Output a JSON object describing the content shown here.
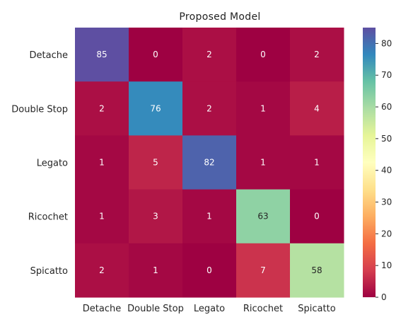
{
  "chart_data": {
    "type": "heatmap",
    "title": "Proposed Model",
    "xlabel": "",
    "ylabel": "",
    "x_categories": [
      "Detache",
      "Double Stop",
      "Legato",
      "Ricochet",
      "Spicatto"
    ],
    "y_categories": [
      "Detache",
      "Double Stop",
      "Legato",
      "Ricochet",
      "Spicatto"
    ],
    "matrix": [
      [
        85,
        0,
        2,
        0,
        2
      ],
      [
        2,
        76,
        2,
        1,
        4
      ],
      [
        1,
        5,
        82,
        1,
        1
      ],
      [
        1,
        3,
        1,
        63,
        0
      ],
      [
        2,
        1,
        0,
        7,
        58
      ]
    ],
    "colormap": "Spectral",
    "vmin": 0,
    "vmax": 85,
    "colorbar_ticks": [
      0,
      10,
      20,
      30,
      40,
      50,
      60,
      70,
      80
    ],
    "annotations": true
  }
}
